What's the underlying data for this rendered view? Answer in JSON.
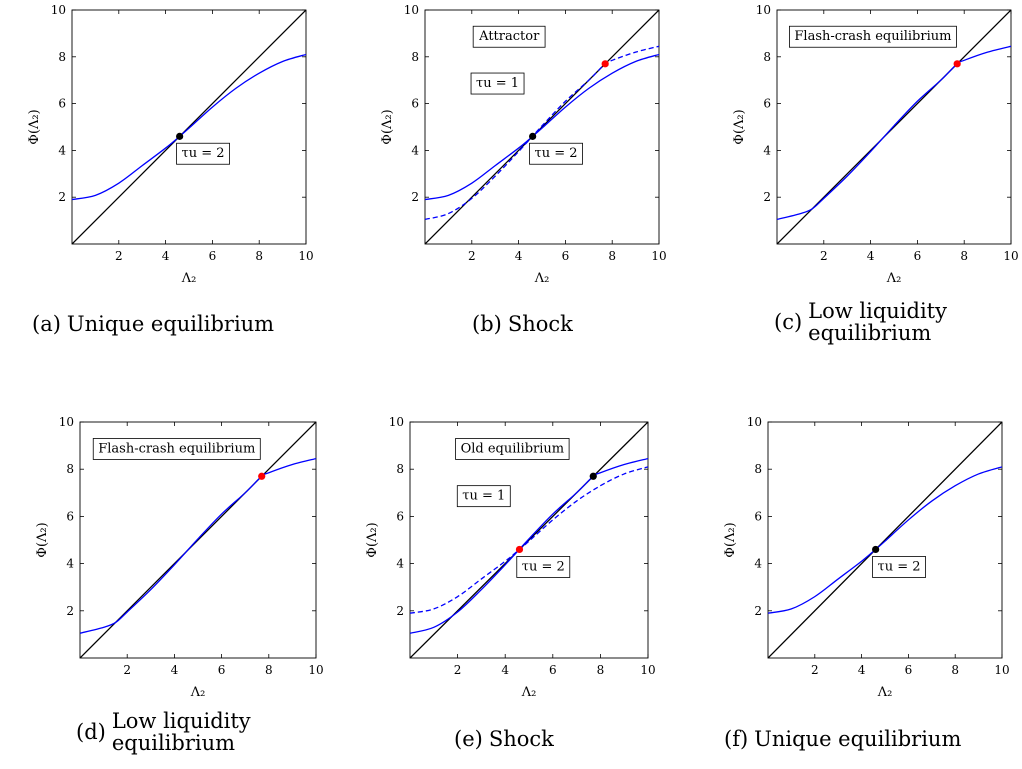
{
  "chart_data": [
    {
      "id": "a",
      "type": "line",
      "caption_tag": "(a)",
      "caption": "Unique equilibrium",
      "xlabel": "Λ₂",
      "ylabel": "Φ(Λ₂)",
      "xlim": [
        0,
        10
      ],
      "ylim": [
        0,
        10
      ],
      "xticks": [
        2,
        4,
        6,
        8,
        10
      ],
      "yticks": [
        2,
        4,
        6,
        8,
        10
      ],
      "series": [
        {
          "kind": "identity",
          "color": "#000000",
          "x": [
            0,
            10
          ],
          "y": [
            0,
            10
          ]
        },
        {
          "kind": "phi",
          "color": "#0000ff",
          "dashed": false,
          "x": [
            0,
            1,
            2,
            3,
            4,
            4.6,
            5,
            6,
            7,
            8,
            9,
            10
          ],
          "y": [
            1.9,
            2.08,
            2.6,
            3.35,
            4.1,
            4.6,
            4.95,
            5.85,
            6.65,
            7.3,
            7.8,
            8.1
          ]
        }
      ],
      "points": [
        {
          "x": 4.6,
          "y": 4.6,
          "color": "#000000"
        }
      ],
      "annotations": [
        {
          "text": "τu = 2",
          "x": 5.6,
          "y": 3.9
        }
      ]
    },
    {
      "id": "b",
      "type": "line",
      "caption_tag": "(b)",
      "caption": "Shock",
      "xlabel": "Λ₂",
      "ylabel": "Φ(Λ₂)",
      "xlim": [
        0,
        10
      ],
      "ylim": [
        0,
        10
      ],
      "xticks": [
        2,
        4,
        6,
        8,
        10
      ],
      "yticks": [
        2,
        4,
        6,
        8,
        10
      ],
      "series": [
        {
          "kind": "identity",
          "color": "#000000",
          "x": [
            0,
            10
          ],
          "y": [
            0,
            10
          ]
        },
        {
          "kind": "phi",
          "color": "#0000ff",
          "dashed": false,
          "x": [
            0,
            1,
            2,
            3,
            4,
            4.6,
            5,
            6,
            7,
            8,
            9,
            10
          ],
          "y": [
            1.9,
            2.08,
            2.6,
            3.35,
            4.1,
            4.6,
            4.95,
            5.85,
            6.65,
            7.3,
            7.8,
            8.1
          ]
        },
        {
          "kind": "phi",
          "color": "#0000ff",
          "dashed": true,
          "x": [
            0,
            1,
            2,
            3,
            4,
            5,
            6,
            7,
            7.7,
            8,
            9,
            10
          ],
          "y": [
            1.05,
            1.3,
            1.95,
            2.9,
            3.95,
            5.05,
            6.1,
            7.0,
            7.7,
            7.85,
            8.2,
            8.45
          ]
        }
      ],
      "points": [
        {
          "x": 4.6,
          "y": 4.6,
          "color": "#000000"
        },
        {
          "x": 7.7,
          "y": 7.7,
          "color": "#ff0000"
        }
      ],
      "annotations": [
        {
          "text": "Attractor",
          "x": 3.6,
          "y": 8.9
        },
        {
          "text": "τu = 1",
          "x": 3.1,
          "y": 6.9
        },
        {
          "text": "τu = 2",
          "x": 5.6,
          "y": 3.9
        }
      ]
    },
    {
      "id": "c",
      "type": "line",
      "caption_tag": "(c)",
      "caption": "Low liquidity equilibrium",
      "xlabel": "Λ₂",
      "ylabel": "Φ(Λ₂)",
      "xlim": [
        0,
        10
      ],
      "ylim": [
        0,
        10
      ],
      "xticks": [
        2,
        4,
        6,
        8,
        10
      ],
      "yticks": [
        2,
        4,
        6,
        8,
        10
      ],
      "series": [
        {
          "kind": "identity",
          "color": "#000000",
          "x": [
            0,
            10
          ],
          "y": [
            0,
            10
          ]
        },
        {
          "kind": "phi",
          "color": "#0000ff",
          "dashed": false,
          "x": [
            0,
            1,
            1.5,
            2,
            3,
            4,
            5,
            6,
            7,
            7.7,
            8,
            9,
            10
          ],
          "y": [
            1.05,
            1.3,
            1.5,
            1.95,
            2.9,
            3.95,
            5.05,
            6.1,
            7.0,
            7.7,
            7.85,
            8.2,
            8.45
          ]
        }
      ],
      "points": [
        {
          "x": 7.7,
          "y": 7.7,
          "color": "#ff0000"
        }
      ],
      "annotations": [
        {
          "text": "Flash-crash equilibrium",
          "x": 4.1,
          "y": 8.9
        }
      ]
    },
    {
      "id": "d",
      "type": "line",
      "caption_tag": "(d)",
      "caption": "Low liquidity equilibrium",
      "xlabel": "Λ₂",
      "ylabel": "Φ(Λ₂)",
      "xlim": [
        0,
        10
      ],
      "ylim": [
        0,
        10
      ],
      "xticks": [
        2,
        4,
        6,
        8,
        10
      ],
      "yticks": [
        2,
        4,
        6,
        8,
        10
      ],
      "series": [
        {
          "kind": "identity",
          "color": "#000000",
          "x": [
            0,
            10
          ],
          "y": [
            0,
            10
          ]
        },
        {
          "kind": "phi",
          "color": "#0000ff",
          "dashed": false,
          "x": [
            0,
            1,
            1.5,
            2,
            3,
            4,
            5,
            6,
            7,
            7.7,
            8,
            9,
            10
          ],
          "y": [
            1.05,
            1.3,
            1.5,
            1.95,
            2.9,
            3.95,
            5.05,
            6.1,
            7.0,
            7.7,
            7.85,
            8.2,
            8.45
          ]
        }
      ],
      "points": [
        {
          "x": 7.7,
          "y": 7.7,
          "color": "#ff0000"
        }
      ],
      "annotations": [
        {
          "text": "Flash-crash equilibrium",
          "x": 4.1,
          "y": 8.9
        }
      ]
    },
    {
      "id": "e",
      "type": "line",
      "caption_tag": "(e)",
      "caption": "Shock",
      "xlabel": "Λ₂",
      "ylabel": "Φ(Λ₂)",
      "xlim": [
        0,
        10
      ],
      "ylim": [
        0,
        10
      ],
      "xticks": [
        2,
        4,
        6,
        8,
        10
      ],
      "yticks": [
        2,
        4,
        6,
        8,
        10
      ],
      "series": [
        {
          "kind": "identity",
          "color": "#000000",
          "x": [
            0,
            10
          ],
          "y": [
            0,
            10
          ]
        },
        {
          "kind": "phi",
          "color": "#0000ff",
          "dashed": false,
          "x": [
            0,
            1,
            2,
            3,
            4,
            5,
            6,
            7,
            7.7,
            8,
            9,
            10
          ],
          "y": [
            1.05,
            1.3,
            1.95,
            2.9,
            3.95,
            5.05,
            6.1,
            7.0,
            7.7,
            7.85,
            8.2,
            8.45
          ]
        },
        {
          "kind": "phi",
          "color": "#0000ff",
          "dashed": true,
          "x": [
            0,
            1,
            2,
            3,
            4,
            4.6,
            5,
            6,
            7,
            8,
            9,
            10
          ],
          "y": [
            1.9,
            2.08,
            2.6,
            3.35,
            4.1,
            4.6,
            4.95,
            5.85,
            6.65,
            7.3,
            7.8,
            8.1
          ]
        }
      ],
      "points": [
        {
          "x": 7.7,
          "y": 7.7,
          "color": "#000000"
        },
        {
          "x": 4.6,
          "y": 4.6,
          "color": "#ff0000"
        }
      ],
      "annotations": [
        {
          "text": "Old equilibrium",
          "x": 4.3,
          "y": 8.9
        },
        {
          "text": "τu = 1",
          "x": 3.1,
          "y": 6.9
        },
        {
          "text": "τu = 2",
          "x": 5.6,
          "y": 3.9
        }
      ]
    },
    {
      "id": "f",
      "type": "line",
      "caption_tag": "(f)",
      "caption": "Unique equilibrium",
      "xlabel": "Λ₂",
      "ylabel": "Φ(Λ₂)",
      "xlim": [
        0,
        10
      ],
      "ylim": [
        0,
        10
      ],
      "xticks": [
        2,
        4,
        6,
        8,
        10
      ],
      "yticks": [
        2,
        4,
        6,
        8,
        10
      ],
      "series": [
        {
          "kind": "identity",
          "color": "#000000",
          "x": [
            0,
            10
          ],
          "y": [
            0,
            10
          ]
        },
        {
          "kind": "phi",
          "color": "#0000ff",
          "dashed": false,
          "x": [
            0,
            1,
            2,
            3,
            4,
            4.6,
            5,
            6,
            7,
            8,
            9,
            10
          ],
          "y": [
            1.9,
            2.08,
            2.6,
            3.35,
            4.1,
            4.6,
            4.95,
            5.85,
            6.65,
            7.3,
            7.8,
            8.1
          ]
        }
      ],
      "points": [
        {
          "x": 4.6,
          "y": 4.6,
          "color": "#000000"
        }
      ],
      "annotations": [
        {
          "text": "τu = 2",
          "x": 5.6,
          "y": 3.9
        }
      ]
    }
  ]
}
